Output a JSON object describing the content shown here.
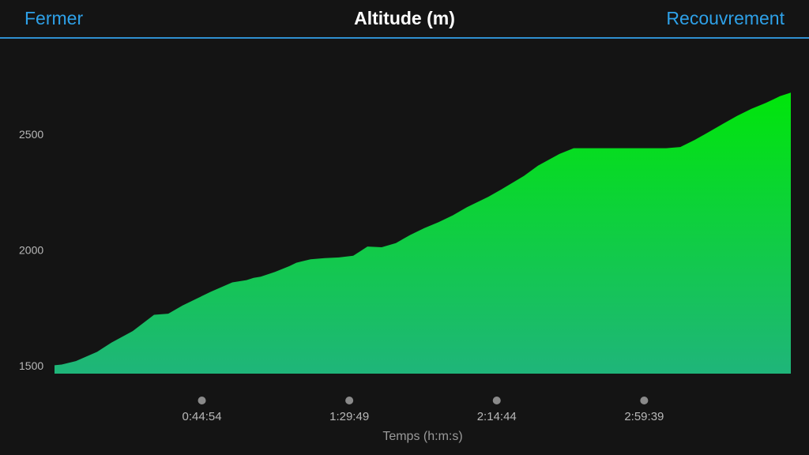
{
  "header": {
    "close_label": "Fermer",
    "title": "Altitude (m)",
    "overlay_label": "Recouvrement"
  },
  "chart_data": {
    "type": "area",
    "title": "Altitude (m)",
    "xlabel": "Temps (h:m:s)",
    "ylabel": "",
    "x_unit": "seconds",
    "xlim": [
      0,
      13460
    ],
    "ylim": [
      1500,
      2700
    ],
    "y_ticks": [
      1500,
      2000,
      2500
    ],
    "y_tick_labels": [
      "1500",
      "2000",
      "2500"
    ],
    "x_ticks": [
      2694,
      5389,
      8084,
      10779
    ],
    "x_tick_labels": [
      "0:44:54",
      "1:29:49",
      "2:14:44",
      "2:59:39"
    ],
    "grid": false,
    "legend": "none",
    "colors": {
      "fill_top": "#00e60a",
      "fill_bottom": "#1fb57a",
      "axis_text": "#b8b8b8",
      "tick_marker": "#8a8a8a",
      "xlabel_text": "#9a9a9a"
    },
    "series": [
      {
        "x": [
          0,
          130,
          390,
          780,
          1040,
          1430,
          1820,
          2080,
          2340,
          2600,
          2860,
          3250,
          3510,
          3640,
          3770,
          3900,
          4030,
          4290,
          4420,
          4680,
          4940,
          5200,
          5460,
          5590,
          5720,
          5980,
          6240,
          6500,
          6760,
          7020,
          7280,
          7540,
          7930,
          8190,
          8580,
          8840,
          9230,
          9490,
          9620,
          9750,
          9880,
          10140,
          10400,
          10660,
          10920,
          11180,
          11440,
          11700,
          11960,
          12220,
          12480,
          12740,
          13000,
          13130,
          13260,
          13460
        ],
        "y": [
          1502,
          1505,
          1520,
          1560,
          1600,
          1650,
          1720,
          1725,
          1760,
          1790,
          1820,
          1860,
          1870,
          1880,
          1885,
          1895,
          1905,
          1930,
          1945,
          1960,
          1965,
          1968,
          1975,
          1995,
          2015,
          2012,
          2030,
          2065,
          2095,
          2120,
          2150,
          2185,
          2230,
          2265,
          2320,
          2365,
          2415,
          2440,
          2440,
          2440,
          2440,
          2440,
          2440,
          2440,
          2440,
          2440,
          2445,
          2475,
          2510,
          2545,
          2580,
          2610,
          2635,
          2650,
          2665,
          2680
        ]
      }
    ]
  }
}
